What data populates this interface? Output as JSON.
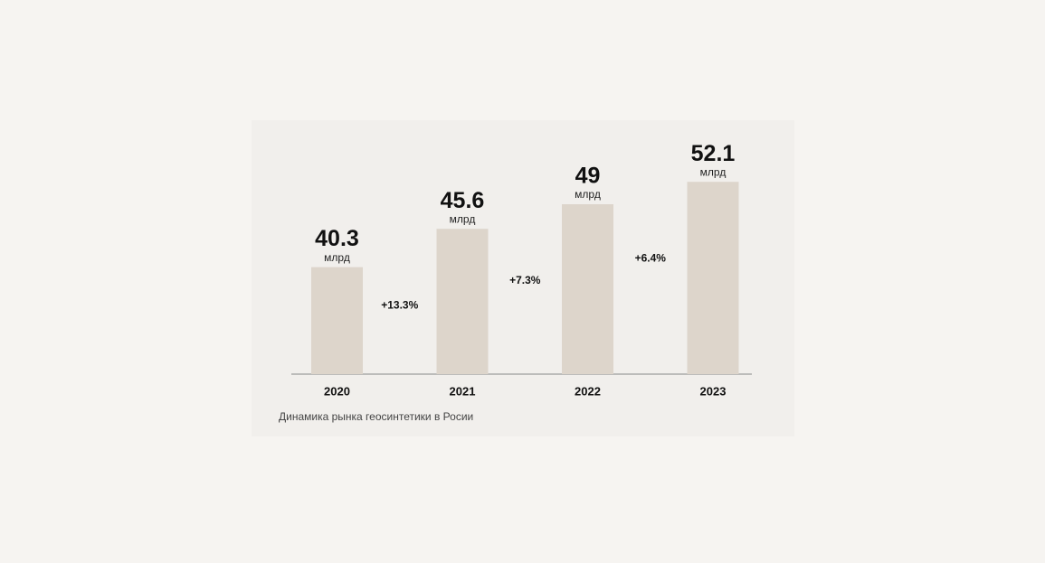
{
  "chart_data": {
    "type": "bar",
    "categories": [
      "2020",
      "2021",
      "2022",
      "2023"
    ],
    "values": [
      40.3,
      45.6,
      49,
      52.1
    ],
    "unit": "млрд",
    "annotations": [
      "+13.3%",
      "+7.3%",
      "+6.4%"
    ],
    "caption": "Динамика рынка геосинтетики в Росии",
    "color": "#ddd5cb",
    "ylim": [
      25.5,
      58.5
    ]
  }
}
